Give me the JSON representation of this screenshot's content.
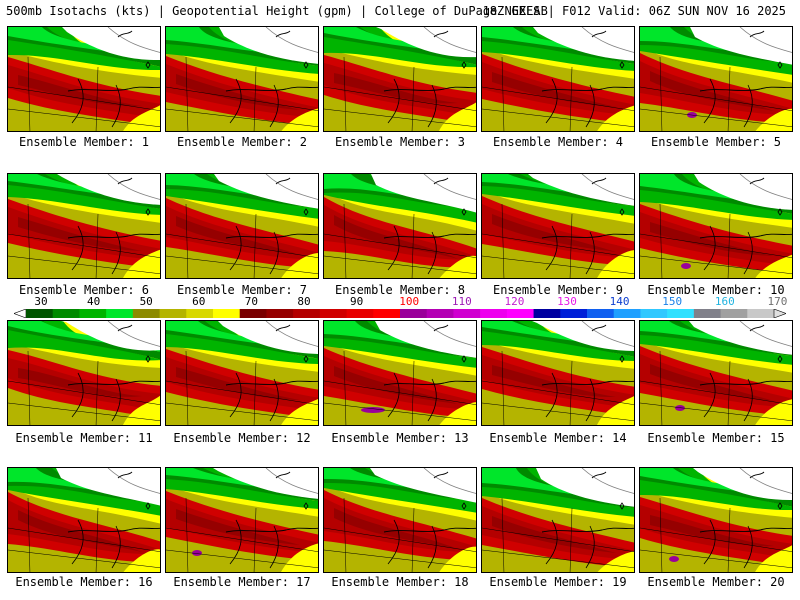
{
  "header": {
    "title_left": "500mb Isotachs (kts) | Geopotential Height (gpm) | College of DuPage NEXLAB",
    "title_right": "18Z GEFS | F012 Valid: 06Z SUN NOV 16 2025"
  },
  "legend": {
    "labels": [
      "30",
      "40",
      "50",
      "60",
      "70",
      "80",
      "90",
      "100",
      "110",
      "120",
      "130",
      "140",
      "150",
      "160",
      "170"
    ],
    "label_colors": [
      "#000000",
      "#000000",
      "#000000",
      "#000000",
      "#000000",
      "#000000",
      "#000000",
      "#ff0000",
      "#9c1bb5",
      "#c21ecf",
      "#e818e8",
      "#1040d0",
      "#1a80e8",
      "#20b4e0",
      "#707070"
    ],
    "colors": [
      "#005500",
      "#008a00",
      "#00b400",
      "#00e62a",
      "#8c8a00",
      "#b4b400",
      "#d8d800",
      "#ffff00",
      "#7a0000",
      "#960000",
      "#b40000",
      "#d00000",
      "#e80000",
      "#ff0000",
      "#9a009a",
      "#b400b4",
      "#d000d0",
      "#ee00ee",
      "#ff00ff",
      "#0000a0",
      "#0020d8",
      "#1060f0",
      "#20a0ff",
      "#30c8ff",
      "#30e0ff",
      "#80808a",
      "#a0a0a0",
      "#c8c8c8"
    ]
  },
  "members": [
    {
      "label": "Ensemble Member: 1"
    },
    {
      "label": "Ensemble Member: 2"
    },
    {
      "label": "Ensemble Member: 3"
    },
    {
      "label": "Ensemble Member: 4"
    },
    {
      "label": "Ensemble Member: 5"
    },
    {
      "label": "Ensemble Member: 6"
    },
    {
      "label": "Ensemble Member: 7"
    },
    {
      "label": "Ensemble Member: 8"
    },
    {
      "label": "Ensemble Member: 9"
    },
    {
      "label": "Ensemble Member: 10"
    },
    {
      "label": "Ensemble Member: 11"
    },
    {
      "label": "Ensemble Member: 12"
    },
    {
      "label": "Ensemble Member: 13"
    },
    {
      "label": "Ensemble Member: 14"
    },
    {
      "label": "Ensemble Member: 15"
    },
    {
      "label": "Ensemble Member: 16"
    },
    {
      "label": "Ensemble Member: 17"
    },
    {
      "label": "Ensemble Member: 18"
    },
    {
      "label": "Ensemble Member: 19"
    },
    {
      "label": "Ensemble Member: 20"
    }
  ]
}
